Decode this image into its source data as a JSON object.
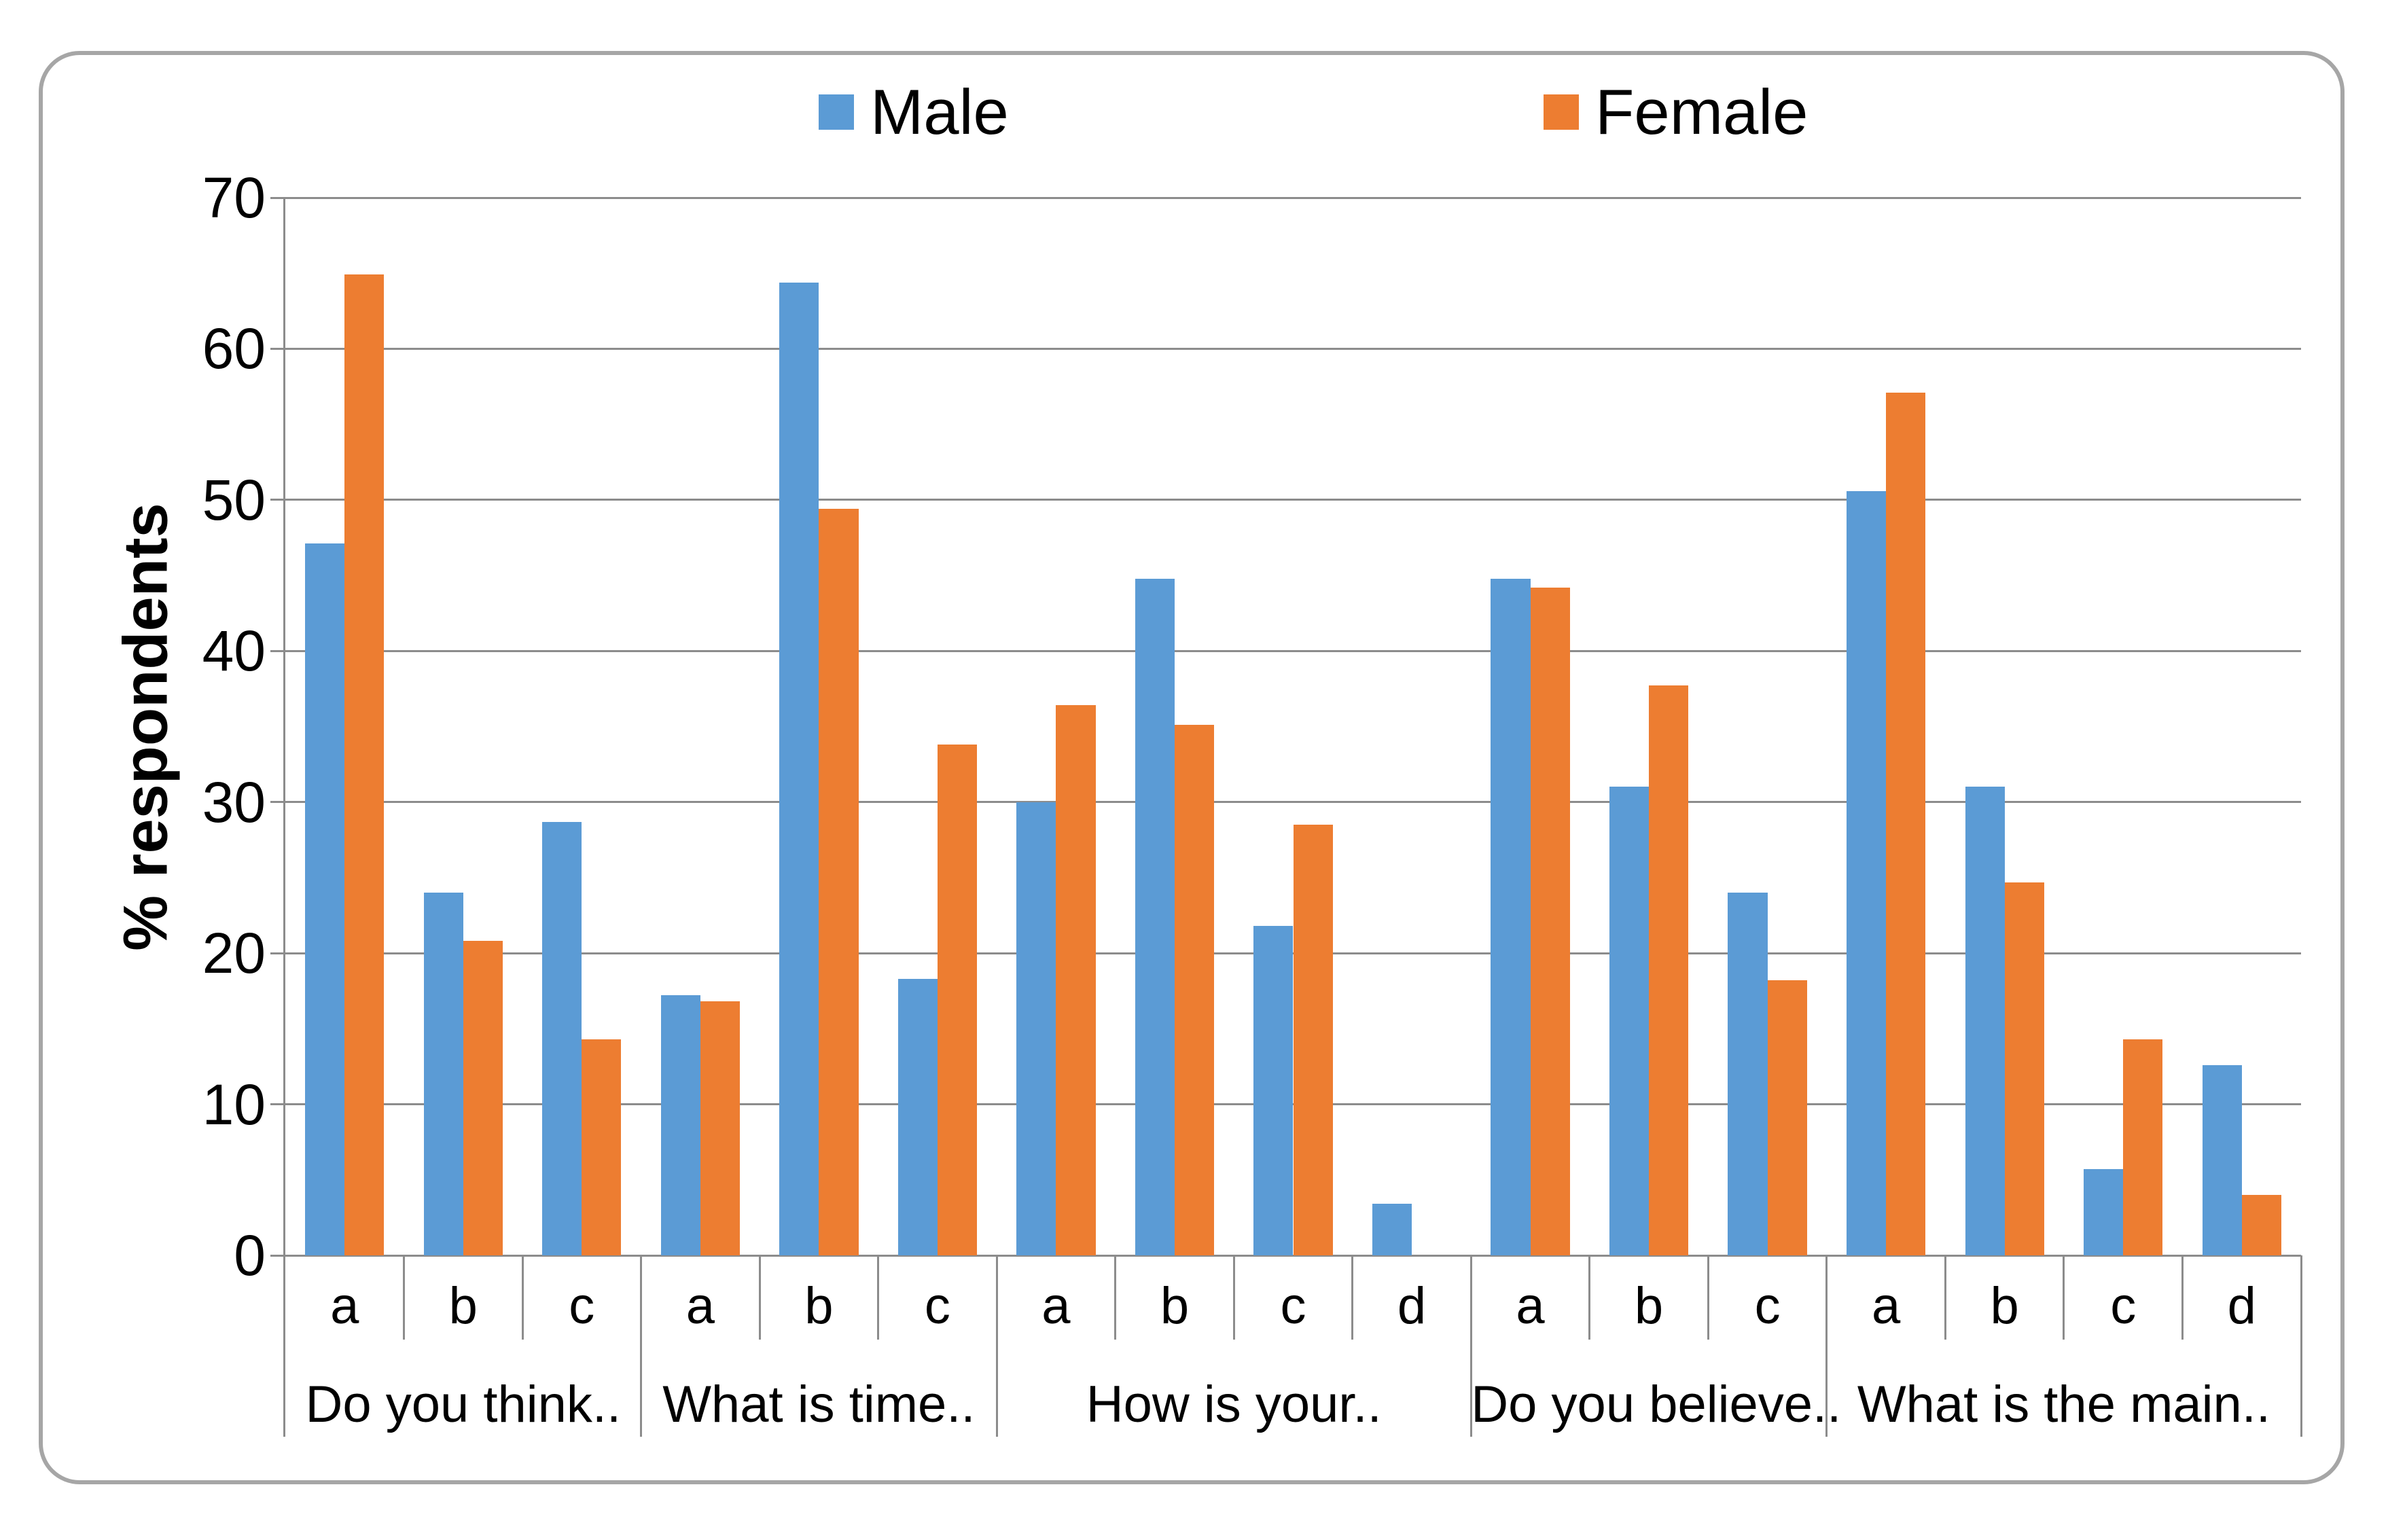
{
  "frame": {
    "border_color": "#a6a6a6",
    "background": "#ffffff"
  },
  "legend": {
    "items": [
      {
        "label": "Male",
        "color": "#5B9BD5"
      },
      {
        "label": "Female",
        "color": "#ED7D31"
      }
    ]
  },
  "chart_data": {
    "type": "bar",
    "title": "",
    "xlabel": "",
    "ylabel": "% respondents",
    "ylim": [
      0,
      70
    ],
    "yticks": [
      0,
      10,
      20,
      30,
      40,
      50,
      60,
      70
    ],
    "grid": true,
    "legend_position": "top-center",
    "series": [
      {
        "name": "Male",
        "color": "#5B9BD5"
      },
      {
        "name": "Female",
        "color": "#ED7D31"
      }
    ],
    "groups": [
      {
        "label": "Do you think..",
        "categories": [
          "a",
          "b",
          "c"
        ],
        "values": {
          "Male": [
            47.1,
            24.0,
            28.7
          ],
          "Female": [
            64.9,
            20.8,
            14.3
          ]
        }
      },
      {
        "label": "What is time..",
        "categories": [
          "a",
          "b",
          "c"
        ],
        "values": {
          "Male": [
            17.2,
            64.4,
            18.3
          ],
          "Female": [
            16.8,
            49.4,
            33.8
          ]
        }
      },
      {
        "label": "How is your..",
        "categories": [
          "a",
          "b",
          "c",
          "d"
        ],
        "values": {
          "Male": [
            30.0,
            44.8,
            21.8,
            3.4
          ],
          "Female": [
            36.4,
            35.1,
            28.5,
            0
          ]
        }
      },
      {
        "label": "Do you believe..",
        "categories": [
          "a",
          "b",
          "c"
        ],
        "values": {
          "Male": [
            44.8,
            31.0,
            24.0
          ],
          "Female": [
            44.2,
            37.7,
            18.2
          ]
        }
      },
      {
        "label": "What is the main..",
        "categories": [
          "a",
          "b",
          "c",
          "d"
        ],
        "values": {
          "Male": [
            50.6,
            31.0,
            5.7,
            12.6
          ],
          "Female": [
            57.1,
            24.7,
            14.3,
            4.0
          ]
        }
      }
    ]
  }
}
